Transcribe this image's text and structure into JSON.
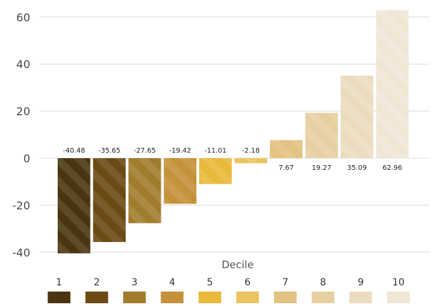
{
  "chart_data": {
    "type": "bar",
    "categories": [
      "1",
      "2",
      "3",
      "4",
      "5",
      "6",
      "7",
      "8",
      "9",
      "10"
    ],
    "values": [
      -40.48,
      -35.65,
      -27.65,
      -19.42,
      -11.01,
      -2.18,
      7.67,
      19.27,
      35.09,
      62.96
    ],
    "value_labels": [
      "-40.48",
      "-35.65",
      "-27.65",
      "-19.42",
      "-11.01",
      "-2.18",
      "7.67",
      "19.27",
      "35.09",
      "62.96"
    ],
    "colors": [
      "#4a3510",
      "#6b4a14",
      "#a07c2c",
      "#c4923a",
      "#e8b93a",
      "#ebc460",
      "#e3c282",
      "#e7cfa1",
      "#ecdcbf",
      "#f0e6d6"
    ],
    "xlabel": "Decile",
    "ylabel": "",
    "ylim": [
      -40,
      64
    ],
    "yticks": [
      60,
      40,
      20,
      0,
      -20,
      -40
    ],
    "ytick_labels": [
      "60",
      "40",
      "20",
      "0",
      "-20",
      "-40"
    ],
    "grid": true,
    "legend": {
      "placement": "bottom",
      "labels": [
        "1",
        "2",
        "3",
        "4",
        "5",
        "6",
        "7",
        "8",
        "9",
        "10"
      ]
    }
  }
}
